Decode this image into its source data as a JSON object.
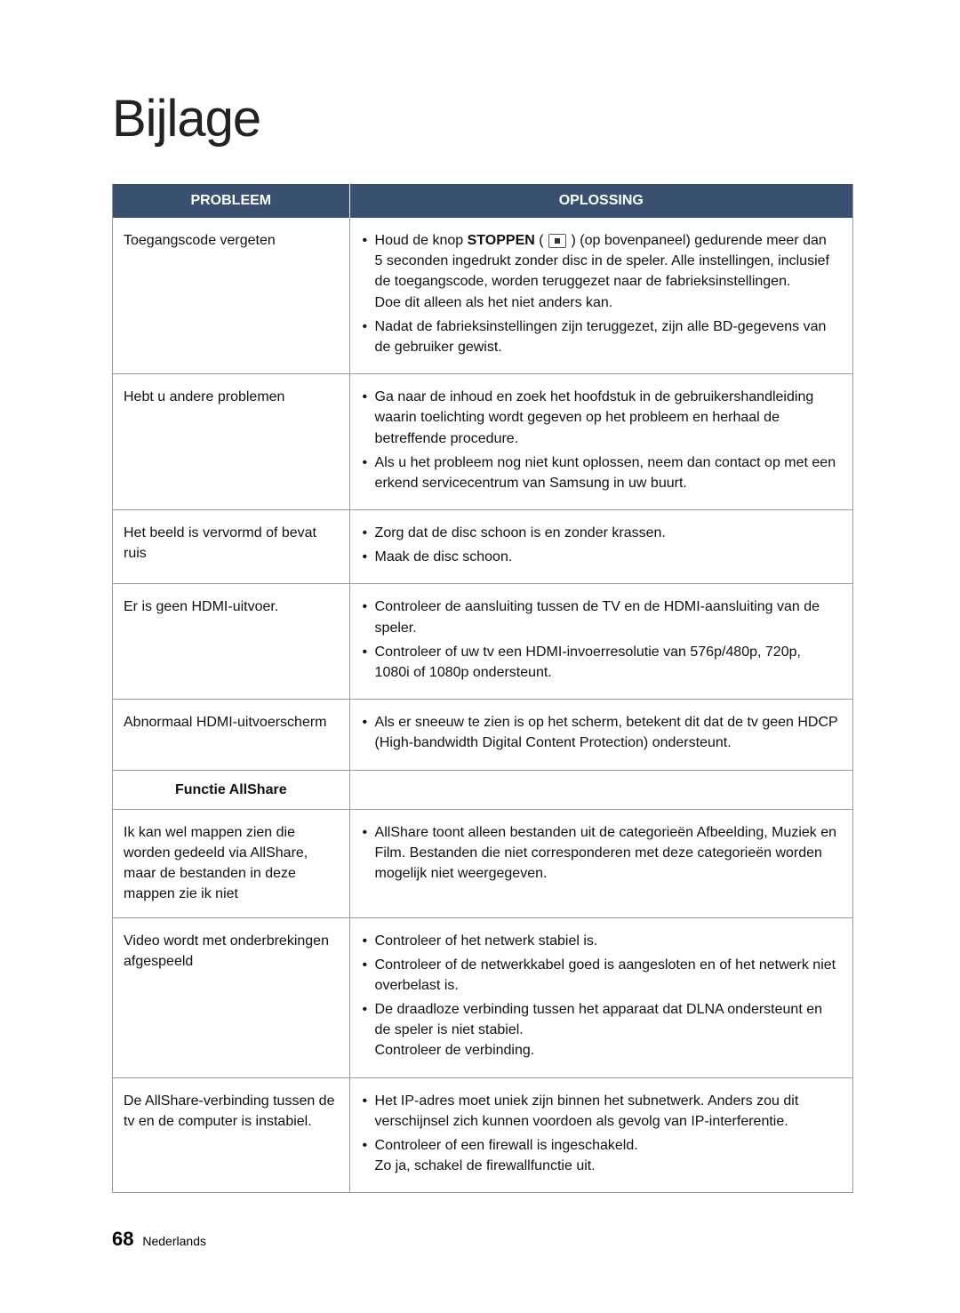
{
  "title": "Bijlage",
  "table": {
    "headers": {
      "problem": "PROBLEEM",
      "solution": "OPLOSSING"
    },
    "rows": [
      {
        "problem": "Toegangscode vergeten",
        "solution": {
          "items": [
            {
              "pre": "Houd de knop ",
              "bold": "STOPPEN",
              "icon": true,
              "post": " (op bovenpaneel) gedurende meer dan 5 seconden ingedrukt zonder disc in de speler. Alle instellingen, inclusief de toegangscode, worden teruggezet naar de fabrieksinstellingen.",
              "extra": "Doe dit alleen als het niet anders kan."
            },
            {
              "text": "Nadat de fabrieksinstellingen zijn teruggezet, zijn alle BD-gegevens van de gebruiker gewist."
            }
          ]
        }
      },
      {
        "problem": "Hebt u andere problemen",
        "solution": {
          "items": [
            {
              "text": "Ga naar de inhoud en zoek het hoofdstuk in de gebruikershandleiding waarin toelichting wordt gegeven op het probleem en herhaal de betreffende procedure."
            },
            {
              "text": "Als u het probleem nog niet kunt oplossen, neem dan contact op met een erkend servicecentrum van Samsung in uw buurt."
            }
          ]
        }
      },
      {
        "problem": "Het beeld is vervormd of bevat ruis",
        "solution": {
          "items": [
            {
              "text": "Zorg dat de disc schoon is en zonder krassen."
            },
            {
              "text": "Maak de disc schoon."
            }
          ]
        }
      },
      {
        "problem": "Er is geen HDMI-uitvoer.",
        "solution": {
          "items": [
            {
              "text": "Controleer de aansluiting tussen de TV en de HDMI-aansluiting van de speler."
            },
            {
              "text": "Controleer of uw tv een HDMI-invoerresolutie van 576p/480p, 720p, 1080i of 1080p ondersteunt."
            }
          ]
        }
      },
      {
        "problem": "Abnormaal HDMI-uitvoerscherm",
        "solution": {
          "items": [
            {
              "text": "Als er sneeuw te zien is op het scherm, betekent dit dat de tv geen HDCP (High-bandwidth Digital Content Protection) ondersteunt."
            }
          ]
        }
      },
      {
        "subheader": "Functie AllShare"
      },
      {
        "problem": "Ik kan wel mappen zien die worden gedeeld via AllShare, maar de bestanden in deze mappen zie ik niet",
        "solution": {
          "items": [
            {
              "text": "AllShare toont alleen bestanden uit de categorieën Afbeelding, Muziek en Film. Bestanden die niet corresponderen met deze categorieën worden mogelijk niet weergegeven."
            }
          ]
        }
      },
      {
        "problem": "Video wordt met onderbrekingen afgespeeld",
        "solution": {
          "items": [
            {
              "text": "Controleer of het netwerk stabiel is."
            },
            {
              "text": "Controleer of de netwerkkabel goed is aangesloten en of het netwerk niet overbelast is."
            },
            {
              "text": "De draadloze verbinding tussen het apparaat dat DLNA ondersteunt en de speler is niet stabiel.",
              "extra": "Controleer de verbinding."
            }
          ]
        }
      },
      {
        "problem": "De AllShare-verbinding tussen de tv en de computer is instabiel.",
        "solution": {
          "items": [
            {
              "text": "Het IP-adres moet uniek zijn binnen het subnetwerk. Anders zou dit verschijnsel zich kunnen voordoen als gevolg van IP-interferentie."
            },
            {
              "text": "Controleer of een firewall is ingeschakeld.",
              "extra": "Zo ja, schakel de firewallfunctie uit."
            }
          ]
        }
      }
    ]
  },
  "footer": {
    "page": "68",
    "lang": "Nederlands"
  }
}
